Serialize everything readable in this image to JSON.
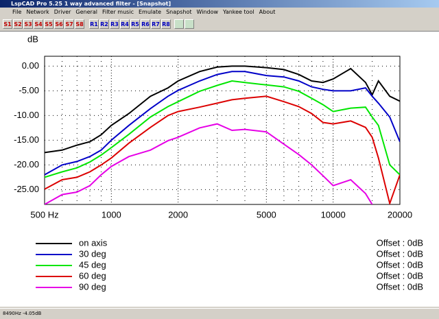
{
  "window": {
    "title": "LspCAD Pro 5.25 1 way advanced filter - [Snapshot]"
  },
  "menu": [
    "File",
    "Network",
    "Driver",
    "General",
    "Filter music",
    "Emulate",
    "Snapshot",
    "Window",
    "Yankee tool",
    "About"
  ],
  "toolbar": {
    "s_buttons": [
      "S1",
      "S2",
      "S3",
      "S4",
      "S5",
      "S6",
      "S7",
      "S8"
    ],
    "r_buttons": [
      "R1",
      "R2",
      "R3",
      "R4",
      "R5",
      "R6",
      "R7",
      "R8"
    ]
  },
  "status": "8490Hz -4.05dB",
  "chart_data": {
    "type": "line",
    "y_label": "dB",
    "log_x": true,
    "grid": true,
    "x": [
      500,
      600,
      700,
      800,
      900,
      1000,
      1200,
      1500,
      1800,
      2000,
      2500,
      3000,
      3500,
      4000,
      5000,
      6000,
      7000,
      8000,
      9000,
      10000,
      12000,
      14000,
      15000,
      16000,
      18000,
      20000
    ],
    "series": [
      {
        "name": "on axis",
        "color": "#000000",
        "offset": "Offset : 0dB",
        "values": [
          -17.5,
          -17,
          -16,
          -15.3,
          -13.9,
          -12,
          -9.6,
          -6.1,
          -4.4,
          -3,
          -1.1,
          -0.2,
          0,
          0,
          -0.3,
          -0.7,
          -1.7,
          -3,
          -3.3,
          -2.6,
          -0.5,
          -3.3,
          -5.8,
          -3,
          -6.1,
          -7.1
        ]
      },
      {
        "name": "30 deg",
        "color": "#0000c8",
        "offset": "Offset : 0dB",
        "values": [
          -22,
          -20,
          -19.3,
          -18.3,
          -17,
          -15,
          -12,
          -8.6,
          -6.1,
          -4.9,
          -3,
          -1.7,
          -1.1,
          -1.1,
          -1.9,
          -2.2,
          -3,
          -4.2,
          -4.7,
          -5,
          -5,
          -4.4,
          -6.1,
          -7.5,
          -10.3,
          -15.3
        ]
      },
      {
        "name": "45 deg",
        "color": "#00e600",
        "offset": "Offset : 0dB",
        "values": [
          -22.5,
          -21.4,
          -20.6,
          -19.4,
          -18,
          -16.5,
          -13.8,
          -10.3,
          -8.2,
          -7.2,
          -5.1,
          -3.9,
          -3,
          -3.3,
          -3.8,
          -4.2,
          -5.1,
          -6.5,
          -7.8,
          -9.2,
          -8.5,
          -8.3,
          -10.3,
          -12,
          -20,
          -22
        ]
      },
      {
        "name": "60 deg",
        "color": "#dc0000",
        "offset": "Offset : 0dB",
        "values": [
          -24.9,
          -23,
          -22.5,
          -21.4,
          -20,
          -18.6,
          -15.6,
          -12.4,
          -10,
          -9.2,
          -8.3,
          -7.5,
          -6.8,
          -6.5,
          -6.1,
          -7.2,
          -8.2,
          -9.6,
          -11.4,
          -11.7,
          -11.1,
          -12.4,
          -14.4,
          -18.6,
          -27.8,
          -22
        ]
      },
      {
        "name": "90 deg",
        "color": "#e600e6",
        "offset": "Offset : 0dB",
        "values": [
          -28,
          -26,
          -25.5,
          -24.2,
          -22,
          -20.3,
          -18.3,
          -17,
          -15.1,
          -14.4,
          -12.5,
          -11.7,
          -13,
          -12.8,
          -13.3,
          -15.8,
          -17.9,
          -20,
          -22.2,
          -24.2,
          -23,
          -25.8,
          -28,
          null,
          null,
          null
        ]
      }
    ],
    "xlim": [
      500,
      20000
    ],
    "xticks": [
      {
        "value": 500,
        "label": "500 Hz"
      },
      1000,
      2000,
      5000,
      10000,
      20000
    ],
    "xminor": [
      600,
      700,
      800,
      900,
      3000,
      4000,
      6000,
      7000,
      8000,
      9000,
      15000
    ],
    "ylim": [
      -28,
      2
    ],
    "yticks": [
      {
        "value": 0,
        "label": "0.00"
      },
      {
        "value": -5,
        "label": "-5.00"
      },
      {
        "value": -10,
        "label": "-10.00"
      },
      {
        "value": -15,
        "label": "-15.00"
      },
      {
        "value": -20,
        "label": "-20.00"
      },
      {
        "value": -25,
        "label": "-25.00"
      }
    ]
  }
}
